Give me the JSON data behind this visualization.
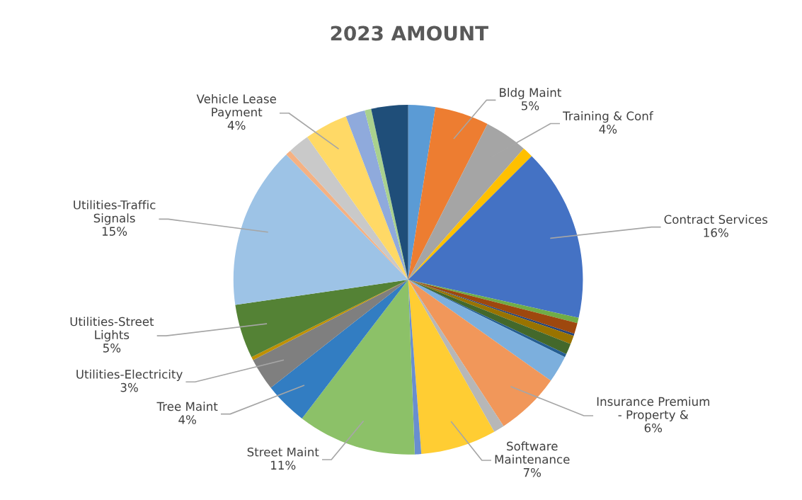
{
  "chart_data": {
    "type": "pie",
    "title": "2023 AMOUNT",
    "categories": [
      null,
      "Bldg Maint",
      "Training & Conf",
      null,
      "Contract Services",
      null,
      null,
      null,
      null,
      null,
      null,
      null,
      "Insurance Premium\n- Property &",
      null,
      "Software\nMaintenance",
      null,
      "Street Maint",
      "Tree Maint",
      "Utilities-Electricity",
      null,
      "Utilities-Street\nLights",
      "Utilities-Traffic\nSignals",
      null,
      null,
      "Vehicle Lease\nPayment",
      null,
      null,
      null
    ],
    "values": [
      2.5,
      5,
      4,
      1,
      16,
      0.5,
      1,
      0.2,
      0.8,
      1,
      0.3,
      2.5,
      6,
      1,
      7,
      0.6,
      11,
      4,
      3,
      0.3,
      5,
      15,
      0.5,
      2,
      4,
      1.8,
      0.6,
      3.4
    ],
    "value_labels": [
      null,
      "5%",
      "4%",
      null,
      "16%",
      null,
      null,
      null,
      null,
      null,
      null,
      null,
      "6%",
      null,
      "7%",
      null,
      "11%",
      "4%",
      "3%",
      null,
      "5%",
      "15%",
      null,
      null,
      "4%",
      null,
      null,
      null
    ],
    "colors": [
      "#5b9bd5",
      "#ed7d31",
      "#a5a5a5",
      "#ffc000",
      "#4472c4",
      "#70ad47",
      "#9e480e",
      "#264478",
      "#997300",
      "#43682b",
      "#255e91",
      "#7cafdd",
      "#f1975a",
      "#b7b7b7",
      "#ffcd33",
      "#698ed0",
      "#8cc168",
      "#327dc2",
      "#7f7f7f",
      "#bf9000",
      "#548235",
      "#9dc3e6",
      "#f4b183",
      "#c9c9c9",
      "#ffd966",
      "#8faadc",
      "#a9d18e",
      "#1f4e79"
    ]
  }
}
